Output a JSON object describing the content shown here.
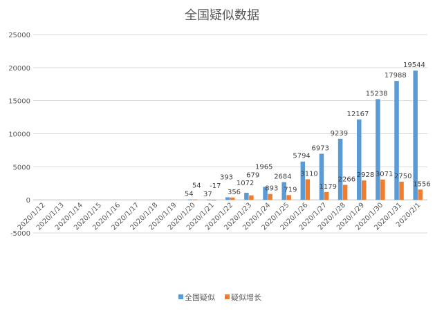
{
  "chart_data": {
    "type": "bar",
    "title": "全国疑似数据",
    "categories": [
      "2020/1/12",
      "2020/1/13",
      "2020/1/14",
      "2020/1/15",
      "2020/1/16",
      "2020/1/17",
      "2020/1/18",
      "2020/1/19",
      "2020/1/20",
      "2020/1/21",
      "2020/1/22",
      "2020/1/23",
      "2020/1/24",
      "2020/1/25",
      "2020/1/26",
      "2020/1/27",
      "2020/1/28",
      "2020/1/29",
      "2020/1/30",
      "2020/1/31",
      "2020/2/1"
    ],
    "series": [
      {
        "name": "全国疑似",
        "color": "#5b9bd5",
        "values": [
          null,
          null,
          null,
          null,
          null,
          null,
          null,
          null,
          54,
          37,
          393,
          1072,
          1965,
          2684,
          5794,
          6973,
          9239,
          12167,
          15238,
          17988,
          19544
        ]
      },
      {
        "name": "疑似增长",
        "color": "#ed7d31",
        "values": [
          null,
          null,
          null,
          null,
          null,
          null,
          null,
          null,
          54,
          -17,
          356,
          679,
          893,
          719,
          3110,
          1179,
          2266,
          2928,
          3071,
          2750,
          1556
        ]
      }
    ],
    "ylim": [
      -5000,
      25000
    ],
    "yticks": [
      -5000,
      0,
      5000,
      10000,
      15000,
      20000,
      25000
    ],
    "grid": true,
    "legend": "bottom"
  }
}
